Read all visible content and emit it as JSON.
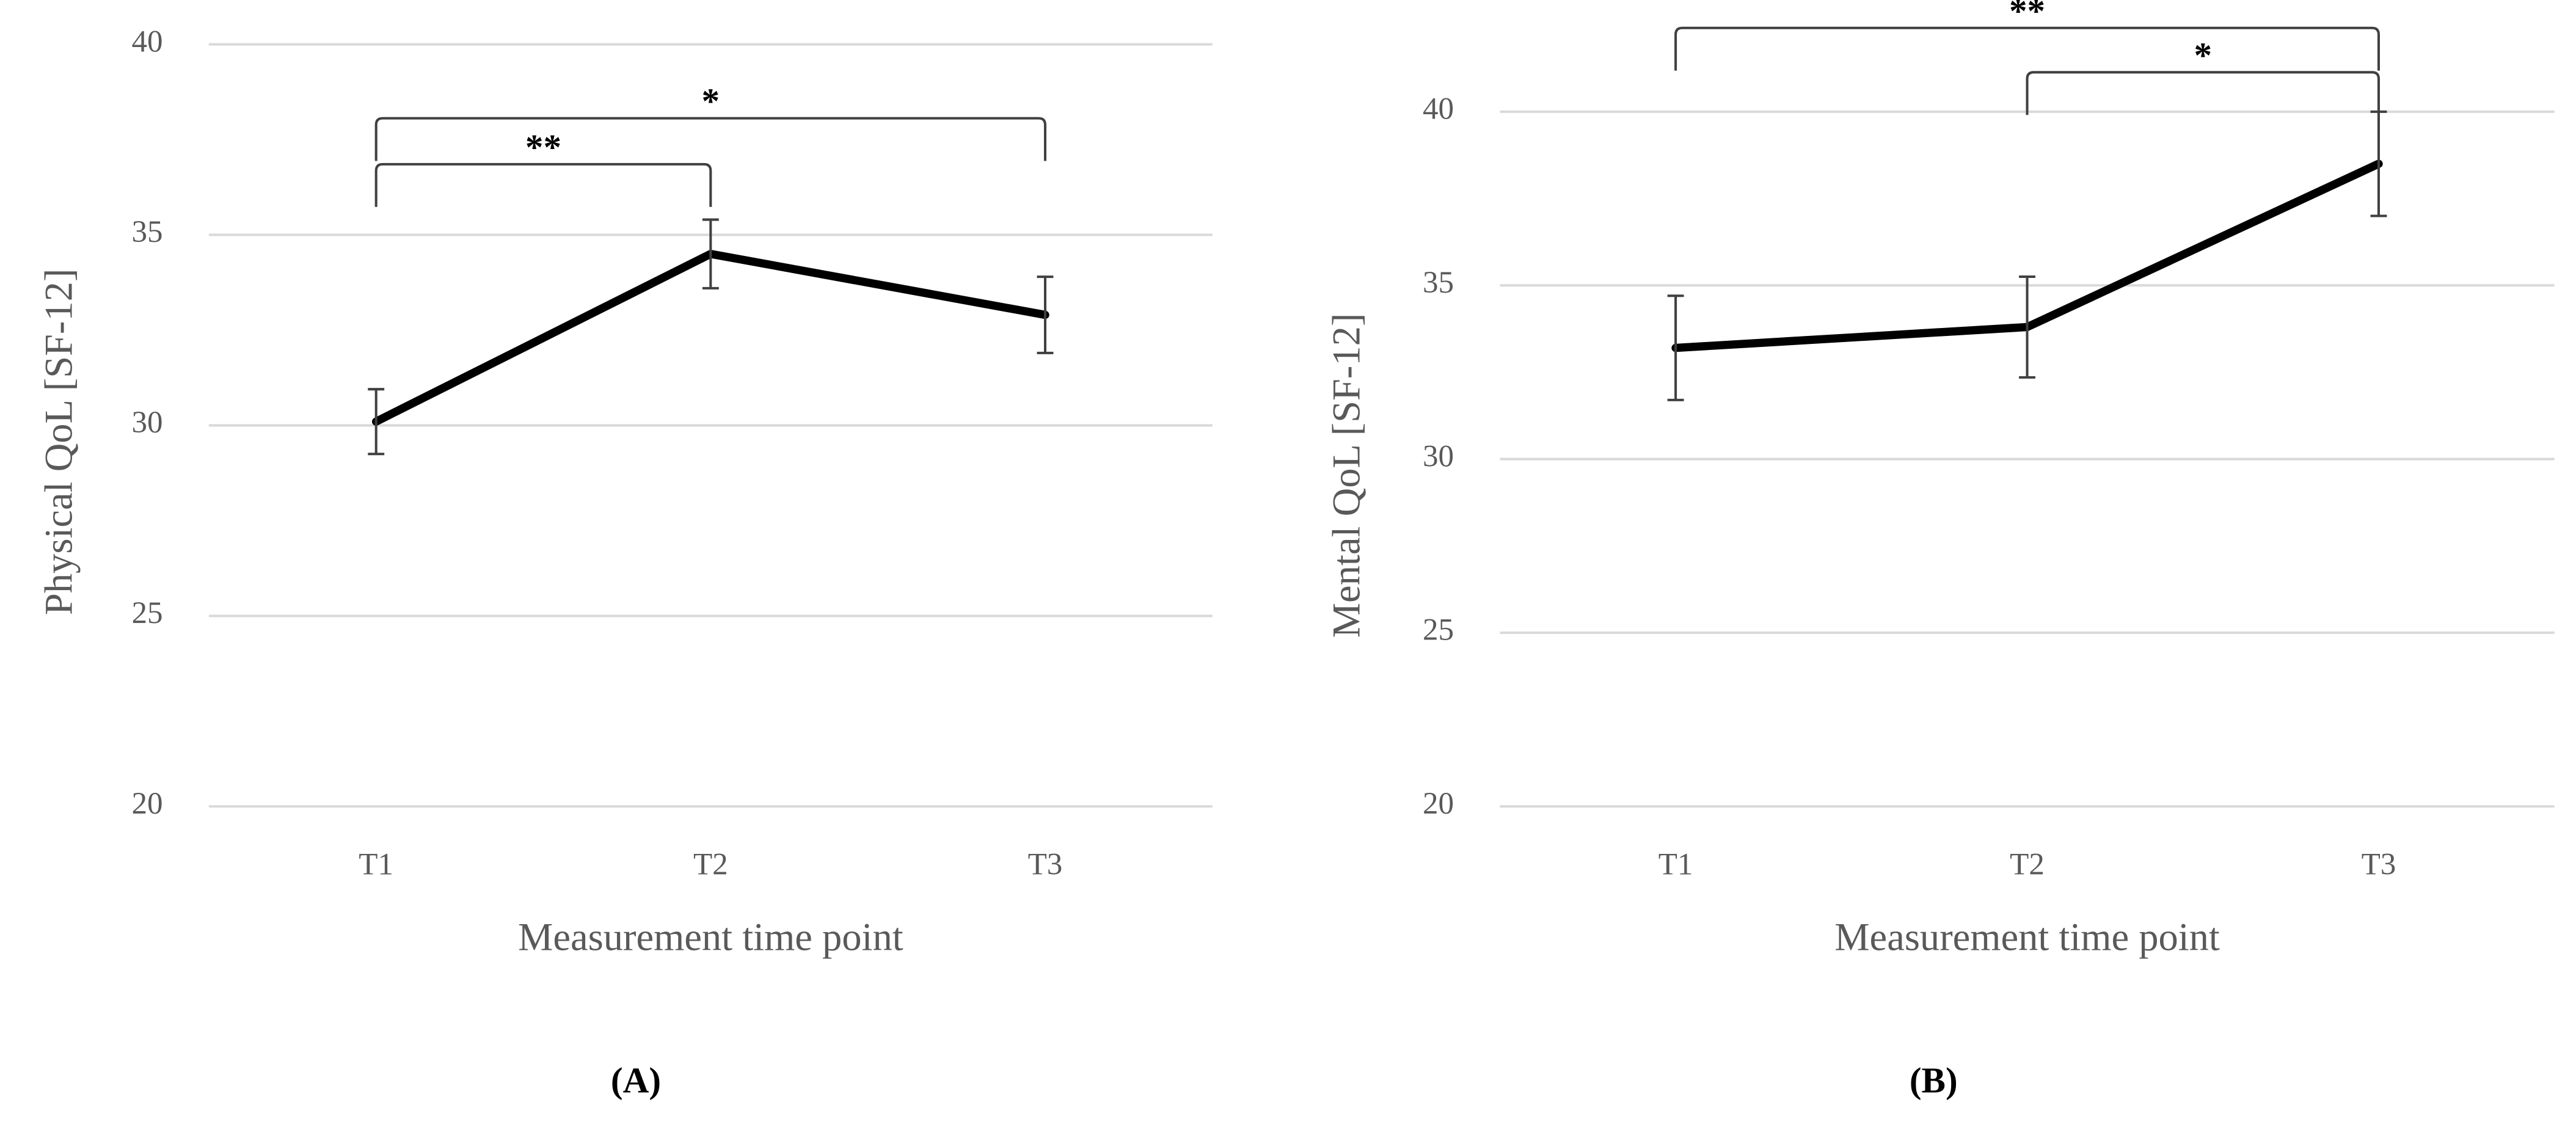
{
  "chart_data": [
    {
      "type": "line",
      "panel": "(A)",
      "y_label": "Physical QoL [SF-12]",
      "x_label": "Measurement time point",
      "categories": [
        "T1",
        "T2",
        "T3"
      ],
      "series": [
        {
          "color": "#000000",
          "values": [
            30.1,
            34.5,
            32.9
          ],
          "errors": [
            0.85,
            0.9,
            1.0
          ]
        }
      ],
      "ylim": [
        20,
        40
      ],
      "yticks": [
        20,
        25,
        30,
        35,
        40
      ],
      "grid": true,
      "annotations": [
        {
          "text": "*",
          "categories": [
            "T1",
            "T3"
          ]
        },
        {
          "text": "**",
          "categories": [
            "T1",
            "T2"
          ]
        }
      ]
    },
    {
      "type": "line",
      "panel": "(B)",
      "y_label": "Mental QoL [SF-12]",
      "x_label": "Measurement time point",
      "categories": [
        "T1",
        "T2",
        "T3"
      ],
      "series": [
        {
          "color": "#000000",
          "values": [
            33.2,
            33.8,
            38.5
          ],
          "errors": [
            1.5,
            1.45,
            1.5
          ]
        }
      ],
      "ylim": [
        20,
        40
      ],
      "yticks": [
        20,
        25,
        30,
        35,
        40
      ],
      "grid": true,
      "annotations": [
        {
          "text": "**",
          "categories": [
            "T1",
            "T3"
          ]
        },
        {
          "text": "*",
          "categories": [
            "T2",
            "T3"
          ]
        }
      ]
    }
  ]
}
